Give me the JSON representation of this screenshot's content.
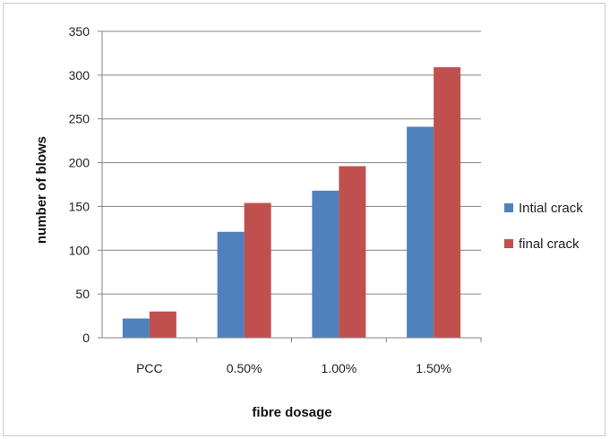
{
  "chart_data": {
    "type": "bar",
    "categories": [
      "PCC",
      "0.50%",
      "1.00%",
      "1.50%"
    ],
    "series": [
      {
        "name": "Intial crack",
        "values": [
          22,
          121,
          168,
          241
        ],
        "color": "#4f81bd"
      },
      {
        "name": "final crack",
        "values": [
          30,
          154,
          196,
          309
        ],
        "color": "#c0504d"
      }
    ],
    "title": "",
    "xlabel": "fibre dosage",
    "ylabel": "number of blows",
    "ylim": [
      0,
      350
    ],
    "yticks": [
      0,
      50,
      100,
      150,
      200,
      250,
      300,
      350
    ],
    "grid": true,
    "legend_position": "right"
  }
}
